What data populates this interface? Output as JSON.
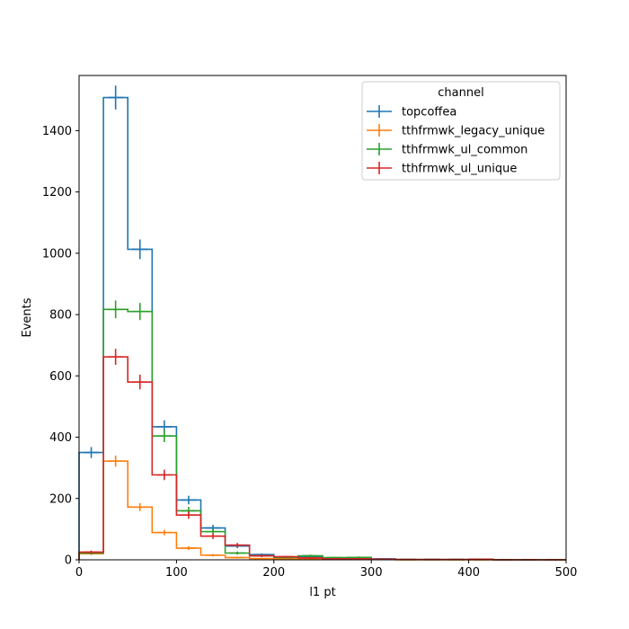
{
  "chart_data": {
    "type": "step",
    "xlabel": "l1 pt",
    "ylabel": "Events",
    "xlim": [
      0,
      500
    ],
    "ylim": [
      0,
      1580
    ],
    "xticks": [
      0,
      100,
      200,
      300,
      400,
      500
    ],
    "yticks": [
      0,
      200,
      400,
      600,
      800,
      1000,
      1200,
      1400
    ],
    "legend": {
      "title": "channel",
      "placement": "top-right"
    },
    "bin_edges": [
      0,
      25,
      50,
      75,
      100,
      125,
      150,
      175,
      200,
      225,
      250,
      275,
      300,
      325,
      350,
      375,
      400,
      425,
      450,
      475,
      500
    ],
    "series": [
      {
        "name": "topcoffea",
        "color": "#1f77b4",
        "values": [
          350,
          1508,
          1013,
          434,
          195,
          104,
          45,
          17,
          8,
          10,
          5,
          5,
          3,
          1,
          1,
          1,
          1,
          0,
          0,
          0
        ],
        "errors": [
          18,
          39,
          32,
          21,
          14,
          10,
          7,
          4,
          3,
          3,
          2,
          2,
          2,
          1,
          1,
          1,
          1,
          0,
          0,
          0
        ]
      },
      {
        "name": "tthfrmwk_legacy_unique",
        "color": "#ff7f0e",
        "values": [
          20,
          322,
          172,
          89,
          38,
          15,
          7,
          4,
          3,
          2,
          1,
          1,
          1,
          0,
          0,
          0,
          0,
          0,
          0,
          0
        ],
        "errors": [
          4,
          18,
          13,
          9,
          6,
          4,
          3,
          2,
          2,
          1,
          1,
          1,
          1,
          0,
          0,
          0,
          0,
          0,
          0,
          0
        ]
      },
      {
        "name": "tthfrmwk_ul_common",
        "color": "#2ca02c",
        "values": [
          22,
          817,
          810,
          404,
          160,
          92,
          22,
          13,
          8,
          13,
          7,
          8,
          2,
          1,
          1,
          1,
          1,
          0,
          0,
          0
        ],
        "errors": [
          5,
          29,
          28,
          20,
          13,
          10,
          5,
          4,
          3,
          4,
          3,
          3,
          1,
          1,
          1,
          1,
          1,
          0,
          0,
          0
        ]
      },
      {
        "name": "tthfrmwk_ul_unique",
        "color": "#d62728",
        "values": [
          25,
          662,
          580,
          277,
          146,
          77,
          48,
          13,
          10,
          6,
          3,
          3,
          2,
          1,
          1,
          1,
          2,
          0,
          0,
          0
        ],
        "errors": [
          5,
          26,
          24,
          17,
          12,
          9,
          7,
          4,
          3,
          2,
          2,
          2,
          1,
          1,
          1,
          1,
          1,
          0,
          0,
          0
        ]
      }
    ]
  }
}
